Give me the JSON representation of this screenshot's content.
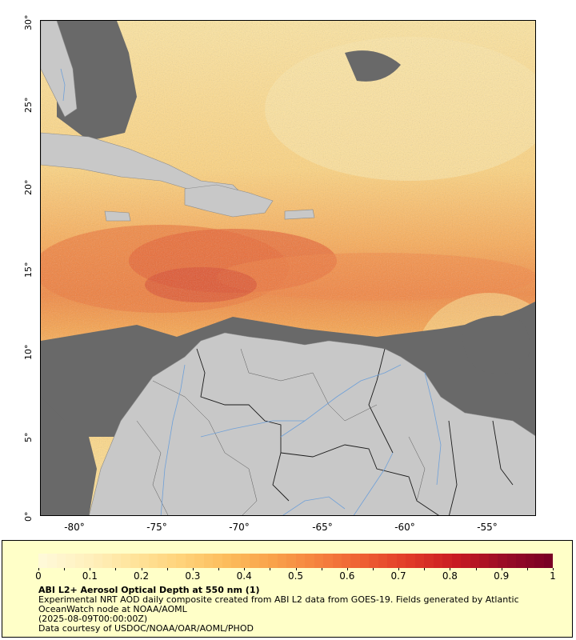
{
  "map": {
    "lat_ticks": [
      "30°",
      "25°",
      "20°",
      "15°",
      "10°",
      "5°",
      "0°"
    ],
    "lon_ticks": [
      "-80°",
      "-75°",
      "-70°",
      "-65°",
      "-60°",
      "-55°"
    ],
    "extent": {
      "lon_min": -82,
      "lon_max": -52,
      "lat_min": 0,
      "lat_max": 30
    },
    "colors": {
      "no_data": "#696969",
      "land": "#c8c8c8",
      "river": "#6fa0d8",
      "border": "#505050"
    }
  },
  "colorbar": {
    "ticks": [
      "0",
      "0.1",
      "0.2",
      "0.3",
      "0.4",
      "0.5",
      "0.6",
      "0.7",
      "0.8",
      "0.9",
      "1"
    ],
    "range": [
      0,
      1
    ],
    "colors": [
      "#fff9d8",
      "#fff0bd",
      "#ffe39a",
      "#ffd37a",
      "#fcbc5c",
      "#f9a24a",
      "#f5813e",
      "#ee5e32",
      "#e03a28",
      "#c81b22",
      "#9b0c26",
      "#7a0025"
    ]
  },
  "legend": {
    "title": "ABI L2+ Aerosol Optical Depth at 550 nm (1)",
    "line1": "Experimental NRT AOD daily composite created from ABI L2 data from GOES-19. Fields generated by Atlantic OceanWatch node at NOAA/AOML",
    "line2": "(2025-08-09T00:00:00Z)",
    "line3": "Data courtesy of USDOC/NOAA/OAR/AOML/PHOD"
  }
}
